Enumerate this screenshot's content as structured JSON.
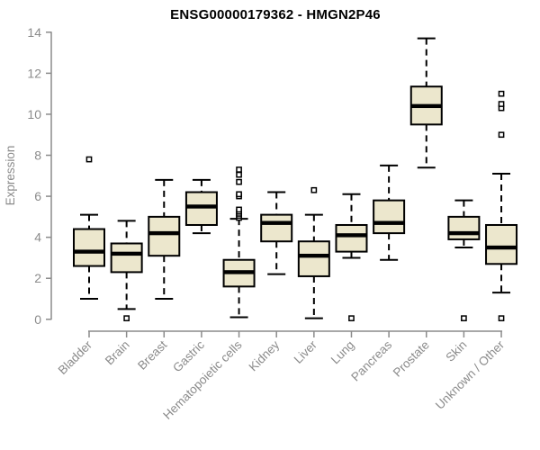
{
  "title": "ENSG00000179362 - HMGN2P46",
  "chart_data": {
    "type": "boxplot",
    "title": "ENSG00000179362 - HMGN2P46",
    "xlabel": "",
    "ylabel": "Expression",
    "ylim": [
      0,
      14
    ],
    "yticks": [
      0,
      2,
      4,
      6,
      8,
      10,
      12,
      14
    ],
    "grid": false,
    "legend": "none",
    "colors": {
      "box_fill": "#ece7cd",
      "box_border": "#000000",
      "median": "#000000",
      "axis": "#8b8b8b",
      "tick_text": "#8b8b8b",
      "title_text": "#000000",
      "outlier_fill": "#ffffff"
    },
    "categories": [
      "Bladder",
      "Brain",
      "Breast",
      "Gastric",
      "Hematopoietic cells",
      "Kidney",
      "Liver",
      "Lung",
      "Pancreas",
      "Prostate",
      "Skin",
      "Unknown / Other"
    ],
    "series": [
      {
        "name": "Bladder",
        "whisker_low": 1.0,
        "q1": 2.6,
        "median": 3.3,
        "q3": 4.4,
        "whisker_high": 5.1,
        "outliers": [
          7.8
        ]
      },
      {
        "name": "Brain",
        "whisker_low": 0.5,
        "q1": 2.3,
        "median": 3.2,
        "q3": 3.7,
        "whisker_high": 4.8,
        "outliers": [
          0.05
        ]
      },
      {
        "name": "Breast",
        "whisker_low": 1.0,
        "q1": 3.1,
        "median": 4.2,
        "q3": 5.0,
        "whisker_high": 6.8,
        "outliers": []
      },
      {
        "name": "Gastric",
        "whisker_low": 4.2,
        "q1": 4.6,
        "median": 5.5,
        "q3": 6.2,
        "whisker_high": 6.8,
        "outliers": []
      },
      {
        "name": "Hematopoietic cells",
        "whisker_low": 0.1,
        "q1": 1.6,
        "median": 2.3,
        "q3": 2.9,
        "whisker_high": 4.9,
        "outliers": [
          4.95,
          5.05,
          5.15,
          5.25,
          5.35,
          6.0,
          6.1,
          6.7,
          7.05,
          7.3
        ]
      },
      {
        "name": "Kidney",
        "whisker_low": 2.2,
        "q1": 3.8,
        "median": 4.7,
        "q3": 5.1,
        "whisker_high": 6.2,
        "outliers": []
      },
      {
        "name": "Liver",
        "whisker_low": 0.05,
        "q1": 2.1,
        "median": 3.1,
        "q3": 3.8,
        "whisker_high": 5.1,
        "outliers": [
          6.3
        ]
      },
      {
        "name": "Lung",
        "whisker_low": 3.0,
        "q1": 3.3,
        "median": 4.1,
        "q3": 4.6,
        "whisker_high": 6.1,
        "outliers": [
          0.05
        ]
      },
      {
        "name": "Pancreas",
        "whisker_low": 2.9,
        "q1": 4.2,
        "median": 4.7,
        "q3": 5.8,
        "whisker_high": 7.5,
        "outliers": []
      },
      {
        "name": "Prostate",
        "whisker_low": 7.4,
        "q1": 9.5,
        "median": 10.4,
        "q3": 11.35,
        "whisker_high": 13.7,
        "outliers": []
      },
      {
        "name": "Skin",
        "whisker_low": 3.5,
        "q1": 3.9,
        "median": 4.2,
        "q3": 5.0,
        "whisker_high": 5.8,
        "outliers": [
          0.05
        ]
      },
      {
        "name": "Unknown / Other",
        "whisker_low": 1.3,
        "q1": 2.7,
        "median": 3.5,
        "q3": 4.6,
        "whisker_high": 7.1,
        "outliers": [
          0.05,
          9.0,
          10.3,
          10.5,
          11.0
        ]
      }
    ]
  }
}
